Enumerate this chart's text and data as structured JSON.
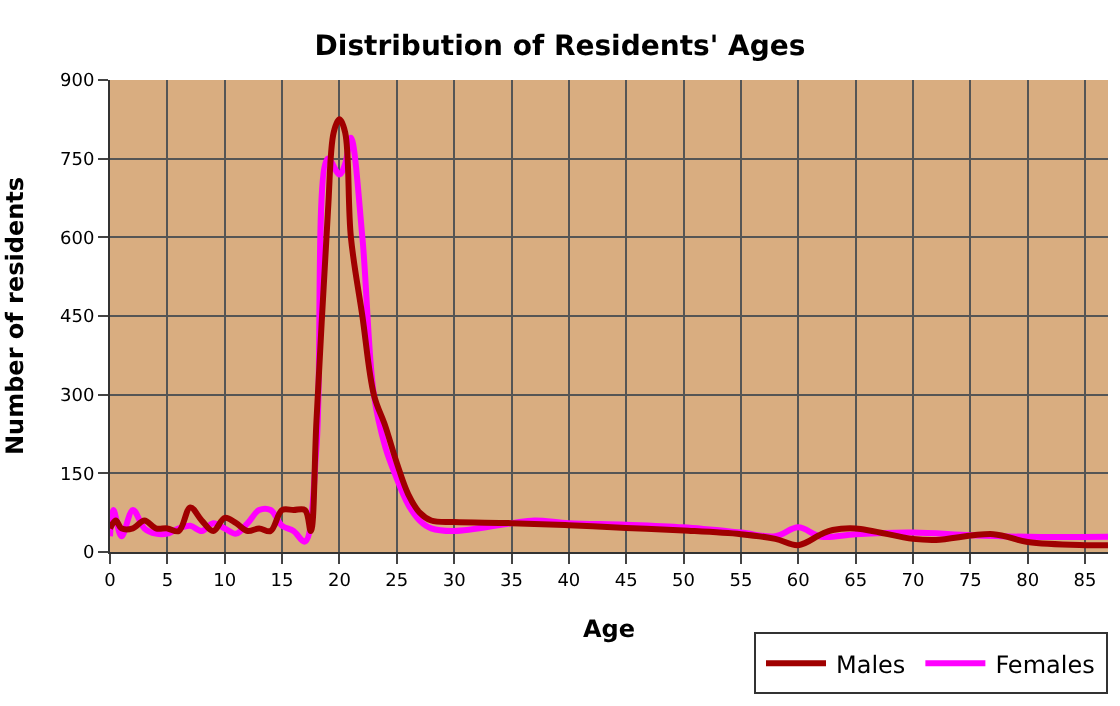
{
  "chart_data": {
    "type": "line",
    "title": "Distribution of Residents' Ages",
    "xlabel": "Age",
    "ylabel": "Number of residents",
    "xlim": [
      0,
      87
    ],
    "xticks": [
      0,
      5,
      10,
      15,
      20,
      25,
      30,
      35,
      40,
      45,
      50,
      55,
      60,
      65,
      70,
      75,
      80,
      85
    ],
    "ylim": [
      0,
      900
    ],
    "yticks": [
      0,
      150,
      300,
      450,
      600,
      750,
      900
    ],
    "grid": true,
    "legend": "bottom right",
    "marker": "none",
    "line_style": "solid",
    "series": [
      {
        "name": "Males",
        "color": "#a00000",
        "x": [
          0,
          0.5,
          1,
          2,
          3,
          4,
          5,
          6,
          7,
          8,
          9,
          10,
          11,
          12,
          13,
          14,
          15,
          16,
          17,
          17.5,
          18,
          19,
          19.5,
          20,
          20.5,
          21,
          22,
          23,
          24,
          25,
          26,
          27,
          28,
          30,
          35,
          40,
          45,
          50,
          55,
          58,
          60,
          62,
          63,
          65,
          70,
          72,
          77,
          80,
          85,
          87
        ],
        "values": [
          45,
          60,
          45,
          45,
          60,
          45,
          45,
          40,
          85,
          60,
          40,
          65,
          55,
          40,
          45,
          40,
          80,
          80,
          80,
          40,
          250,
          650,
          800,
          825,
          800,
          600,
          450,
          300,
          240,
          170,
          110,
          75,
          60,
          57,
          55,
          51,
          46,
          41,
          34,
          25,
          13,
          34,
          42,
          45,
          25,
          23,
          34,
          19,
          13,
          13
        ]
      },
      {
        "name": "Females",
        "color": "#ff00ff",
        "x": [
          0,
          0.3,
          1,
          2,
          3,
          4,
          5,
          6,
          7,
          8,
          9,
          10,
          11,
          12,
          13,
          14,
          15,
          16,
          17,
          18,
          19,
          20,
          20.5,
          21,
          22,
          23,
          24,
          25,
          26,
          27,
          28,
          30,
          35,
          37,
          40,
          45,
          50,
          55,
          58,
          60,
          62,
          65,
          70,
          75,
          80,
          87
        ],
        "values": [
          30,
          80,
          30,
          80,
          45,
          35,
          35,
          45,
          50,
          40,
          55,
          45,
          35,
          55,
          80,
          80,
          50,
          40,
          20,
          200,
          750,
          720,
          740,
          790,
          600,
          300,
          200,
          140,
          90,
          60,
          45,
          40,
          55,
          60,
          55,
          52,
          47,
          37,
          30,
          47,
          29,
          34,
          37,
          32,
          29,
          29
        ]
      }
    ]
  }
}
